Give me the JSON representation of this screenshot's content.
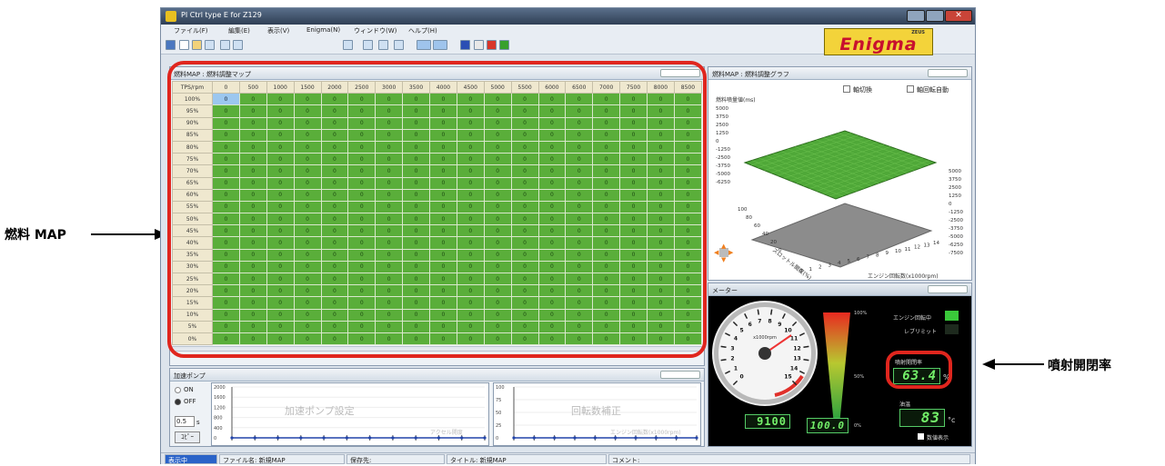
{
  "window": {
    "title": "PI Ctrl type E for Z129"
  },
  "menu": [
    "ファイル(F)",
    "編集(E)",
    "表示(V)",
    "Enigma(N)",
    "ウィンドウ(W)",
    "ヘルプ(H)"
  ],
  "logo": {
    "text": "Enigma",
    "tag": "ZEUS"
  },
  "fuel_map": {
    "title": "燃料MAP : 燃料調整マップ",
    "corner": "TPS/rpm",
    "columns": [
      "0",
      "500",
      "1000",
      "1500",
      "2000",
      "2500",
      "3000",
      "3500",
      "4000",
      "4500",
      "5000",
      "5500",
      "6000",
      "6500",
      "7000",
      "7500",
      "8000",
      "8500"
    ],
    "rows": [
      "100%",
      "95%",
      "90%",
      "85%",
      "80%",
      "75%",
      "70%",
      "65%",
      "60%",
      "55%",
      "50%",
      "45%",
      "40%",
      "35%",
      "30%",
      "25%",
      "20%",
      "15%",
      "10%",
      "5%",
      "0%"
    ],
    "cell_value": "0"
  },
  "graph": {
    "title": "燃料MAP : 燃料調整グラフ",
    "check1": "軸切換",
    "check2": "軸回転自動",
    "zlabel": "燃料噴量値(ms)",
    "zticks": [
      "5000",
      "3750",
      "2500",
      "1250",
      "0",
      "-1250",
      "-2500",
      "-3750",
      "-5000",
      "-6250"
    ],
    "rticks": [
      "5000",
      "3750",
      "2500",
      "1250",
      "0",
      "-1250",
      "-2500",
      "-3750",
      "-5000",
      "-6250",
      "-7500"
    ],
    "xlabel": "エンジン回転数(x1000rpm)",
    "xticks": [
      "0",
      "1",
      "2",
      "3",
      "4",
      "5",
      "6",
      "7",
      "8",
      "9",
      "10",
      "11",
      "12",
      "13",
      "14"
    ],
    "ylabel": "スロットル開度(%)",
    "yticks": [
      "100",
      "80",
      "60",
      "40",
      "20",
      "0"
    ]
  },
  "meter": {
    "title": "メーター",
    "engine_speed_label": "エンジン回転中",
    "limit_label": "レブリミット",
    "duty_label": "噴射開閉率",
    "duty_value": "63.4",
    "duty_unit": "%",
    "temp_label": "油温",
    "temp_value": "83",
    "temp_unit": "°c",
    "numeric_label": "数値表示",
    "rpm_value": "9100",
    "rpm_unit_label": "x1000rpm",
    "bar_value": "100.0",
    "bar_top": "100%",
    "bar_mid": "50%",
    "bar_bot": "0%",
    "dial_ticks": [
      "0",
      "1",
      "2",
      "3",
      "4",
      "5",
      "6",
      "7",
      "8",
      "9",
      "10",
      "11",
      "12",
      "13",
      "14",
      "15"
    ]
  },
  "pump": {
    "title": "加速ポンプ",
    "on": "ON",
    "off": "OFF",
    "value": "0.5",
    "unit": "s",
    "copy_btn": "ｺﾋﾟｰ",
    "chart1_title": "加速ポンプ設定",
    "chart1_caption": "アクセル開度",
    "chart2_title": "回転数補正",
    "chart2_caption": "エンジン回転数(x1000rpm)",
    "chart1_yticks": [
      "2000",
      "1600",
      "1200",
      "800",
      "400",
      "0"
    ],
    "chart2_yticks": [
      "100",
      "75",
      "50",
      "25",
      "0"
    ]
  },
  "status": {
    "mode": "表示中",
    "file": "ファイル名: 新規MAP",
    "preset": "保存先:",
    "title": "タイトル: 新規MAP",
    "comment": "コメント:"
  },
  "annotations": {
    "left": "燃料 MAP",
    "right": "噴射開閉率"
  }
}
